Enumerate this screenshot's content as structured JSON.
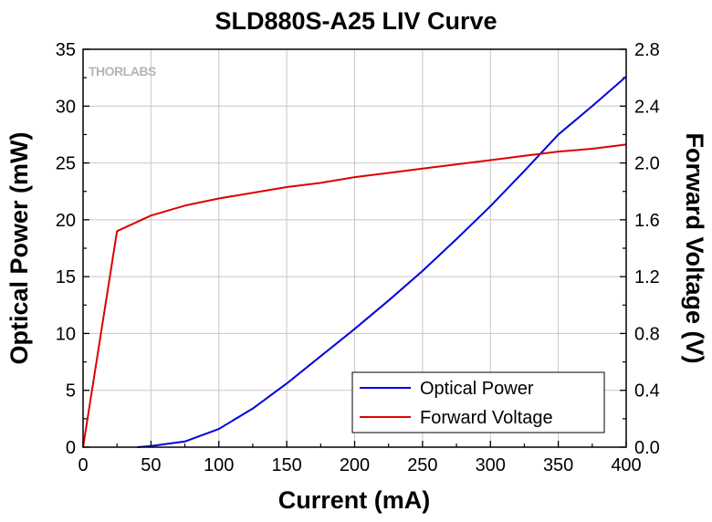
{
  "chart_data": {
    "type": "line",
    "title": "SLD880S-A25 LIV Curve",
    "watermark": "THORLABS",
    "xlabel": "Current (mA)",
    "ylabel_left": "Optical Power (mW)",
    "ylabel_right": "Forward Voltage (V)",
    "xlim": [
      0,
      400
    ],
    "ylim_left": [
      0,
      35
    ],
    "ylim_right": [
      0,
      2.8
    ],
    "x_ticks": [
      "0",
      "50",
      "100",
      "150",
      "200",
      "250",
      "300",
      "350",
      "400"
    ],
    "y_left_ticks": [
      "0",
      "5",
      "10",
      "15",
      "20",
      "25",
      "30",
      "35"
    ],
    "y_right_ticks": [
      "0.0",
      "0.4",
      "0.8",
      "1.2",
      "1.6",
      "2.0",
      "2.4",
      "2.8"
    ],
    "grid": true,
    "legend_position": "bottom-right",
    "series": [
      {
        "name": "Optical Power",
        "axis": "left",
        "color": "#0000dd",
        "x": [
          40,
          50,
          75,
          100,
          125,
          150,
          175,
          200,
          225,
          250,
          275,
          300,
          325,
          350,
          375,
          400
        ],
        "values": [
          0.0,
          0.1,
          0.5,
          1.6,
          3.4,
          5.6,
          8.0,
          10.4,
          12.9,
          15.5,
          18.3,
          21.2,
          24.3,
          27.5,
          30.0,
          32.6
        ]
      },
      {
        "name": "Forward Voltage",
        "axis": "right",
        "color": "#dd0000",
        "x": [
          0,
          25,
          50,
          75,
          100,
          125,
          150,
          175,
          200,
          225,
          250,
          275,
          300,
          325,
          350,
          375,
          400
        ],
        "values": [
          0.0,
          1.52,
          1.63,
          1.7,
          1.75,
          1.79,
          1.83,
          1.86,
          1.9,
          1.93,
          1.96,
          1.99,
          2.02,
          2.05,
          2.08,
          2.1,
          2.13
        ]
      }
    ]
  }
}
